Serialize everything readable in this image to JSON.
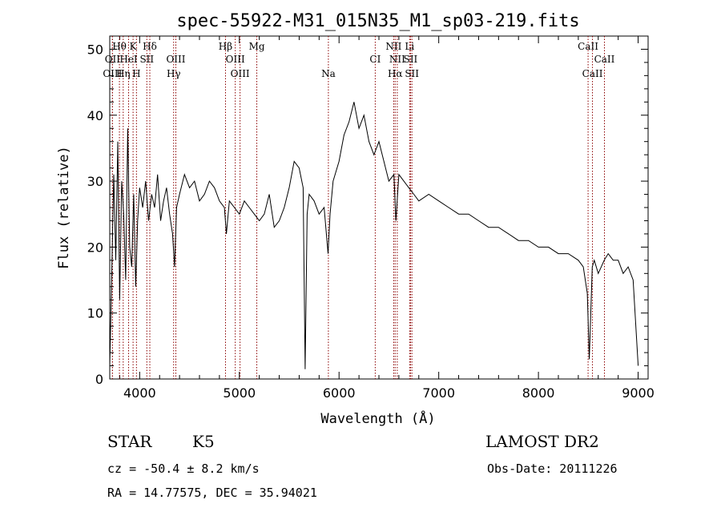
{
  "figure": {
    "title": "spec-55922-M31_015N35_M1_sp03-219.fits",
    "info": {
      "class_label": "STAR",
      "subclass_label": "K5",
      "survey": "LAMOST DR2",
      "redshift_text": "cz = -50.4 ± 8.2 km/s",
      "obs_date_text": "Obs-Date: 20111226",
      "coords_text": "RA =  14.77575, DEC =  35.94021"
    }
  },
  "chart_data": {
    "type": "line",
    "title": "spec-55922-M31_015N35_M1_sp03-219.fits",
    "xlabel": "Wavelength (Å)",
    "ylabel": "Flux (relative)",
    "xlim": [
      3700,
      9100
    ],
    "ylim": [
      0,
      52
    ],
    "x_ticks": [
      4000,
      5000,
      6000,
      7000,
      8000,
      9000
    ],
    "y_ticks": [
      0,
      10,
      20,
      30,
      40,
      50
    ],
    "line_color": "#000000",
    "marker_color": "#8b0000",
    "series": [
      {
        "x": [
          3700,
          3720,
          3740,
          3760,
          3780,
          3800,
          3820,
          3840,
          3860,
          3880,
          3900,
          3920,
          3940,
          3960,
          3980,
          4000,
          4030,
          4060,
          4090,
          4120,
          4150,
          4180,
          4210,
          4240,
          4270,
          4300,
          4330,
          4350,
          4370,
          4400,
          4450,
          4500,
          4550,
          4600,
          4650,
          4700,
          4750,
          4800,
          4850,
          4870,
          4900,
          4950,
          5000,
          5050,
          5100,
          5150,
          5200,
          5250,
          5300,
          5350,
          5400,
          5450,
          5500,
          5550,
          5600,
          5640,
          5660,
          5680,
          5700,
          5750,
          5800,
          5850,
          5890,
          5910,
          5940,
          6000,
          6050,
          6100,
          6150,
          6200,
          6250,
          6300,
          6350,
          6400,
          6450,
          6500,
          6550,
          6570,
          6600,
          6650,
          6700,
          6750,
          6800,
          6900,
          7000,
          7100,
          7200,
          7300,
          7400,
          7500,
          7600,
          7700,
          7800,
          7900,
          8000,
          8100,
          8200,
          8300,
          8400,
          8450,
          8490,
          8510,
          8540,
          8560,
          8600,
          8660,
          8700,
          8750,
          8800,
          8850,
          8900,
          8950,
          9000
        ],
        "y": [
          2,
          16,
          31,
          18,
          36,
          12,
          30,
          25,
          15,
          38,
          20,
          17,
          28,
          14,
          24,
          29,
          26,
          30,
          24,
          28,
          26,
          31,
          24,
          27,
          29,
          25,
          22,
          17,
          26,
          28,
          31,
          29,
          30,
          27,
          28,
          30,
          29,
          27,
          26,
          22,
          27,
          26,
          25,
          27,
          26,
          25,
          24,
          25,
          28,
          23,
          24,
          26,
          29,
          33,
          32,
          29,
          1.5,
          25,
          28,
          27,
          25,
          26,
          19,
          25,
          30,
          33,
          37,
          39,
          42,
          38,
          40,
          36,
          34,
          36,
          33,
          30,
          31,
          24,
          31,
          30,
          29,
          28,
          27,
          28,
          27,
          26,
          25,
          25,
          24,
          23,
          23,
          22,
          21,
          21,
          20,
          20,
          19,
          19,
          18,
          17,
          13,
          3,
          17,
          18,
          16,
          18,
          19,
          18,
          18,
          16,
          17,
          15,
          2
        ]
      }
    ],
    "spectral_lines": [
      {
        "label": "Hθ",
        "wavelength": 3797,
        "row": 1
      },
      {
        "label": "OII",
        "wavelength": 3727,
        "row": 2
      },
      {
        "label": "OIII",
        "wavelength": 3727,
        "row": 3
      },
      {
        "label": "K",
        "wavelength": 3934,
        "row": 1
      },
      {
        "label": "HeI",
        "wavelength": 3889,
        "row": 2
      },
      {
        "label": "Hη",
        "wavelength": 3835,
        "row": 3
      },
      {
        "label": "Hδ",
        "wavelength": 4102,
        "row": 1
      },
      {
        "label": "SII",
        "wavelength": 4072,
        "row": 2
      },
      {
        "label": "H",
        "wavelength": 3968,
        "row": 3
      },
      {
        "label": "OIII",
        "wavelength": 4363,
        "row": 2
      },
      {
        "label": "Hγ",
        "wavelength": 4341,
        "row": 3
      },
      {
        "label": "Hβ",
        "wavelength": 4861,
        "row": 1
      },
      {
        "label": "OIII",
        "wavelength": 4959,
        "row": 2
      },
      {
        "label": "OIII",
        "wavelength": 5007,
        "row": 3
      },
      {
        "label": "Mg",
        "wavelength": 5175,
        "row": 1
      },
      {
        "label": "Na",
        "wavelength": 5893,
        "row": 3
      },
      {
        "label": "CI",
        "wavelength": 6363,
        "row": 2
      },
      {
        "label": "NII",
        "wavelength": 6548,
        "row": 1
      },
      {
        "label": "NII",
        "wavelength": 6584,
        "row": 2
      },
      {
        "label": "Hα",
        "wavelength": 6563,
        "row": 3
      },
      {
        "label": "Li",
        "wavelength": 6708,
        "row": 1
      },
      {
        "label": "SII",
        "wavelength": 6717,
        "row": 2
      },
      {
        "label": "SII",
        "wavelength": 6731,
        "row": 3
      },
      {
        "label": "CaII",
        "wavelength": 8498,
        "row": 1
      },
      {
        "label": "CaII",
        "wavelength": 8662,
        "row": 2
      },
      {
        "label": "CaII",
        "wavelength": 8542,
        "row": 3
      }
    ]
  }
}
